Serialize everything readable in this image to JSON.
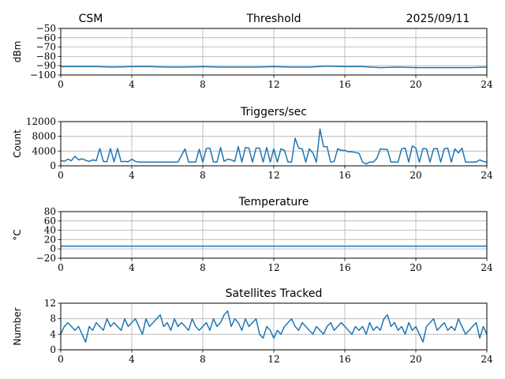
{
  "figure": {
    "left_title": "CSM",
    "right_title": "2025/09/11",
    "line_color": "#1f77b4",
    "grid_color": "#b0b0b0"
  },
  "chart_data": [
    {
      "type": "line",
      "title": "Threshold",
      "ylabel": "dBm",
      "xlim": [
        0,
        24
      ],
      "ylim": [
        -100,
        -50
      ],
      "xticks": [
        0,
        4,
        8,
        12,
        16,
        20,
        24
      ],
      "xticklabels": [
        "0",
        "4",
        "8",
        "12",
        "16",
        "20",
        "24"
      ],
      "yticks": [
        -50,
        -60,
        -70,
        -80,
        -90,
        -100
      ],
      "yticklabels": [
        "−50",
        "−60",
        "−70",
        "−80",
        "−90",
        "−100"
      ],
      "grid": true,
      "x_step": 1,
      "y": [
        -91,
        -91,
        -91,
        -91.5,
        -91,
        -91,
        -91.5,
        -91.5,
        -91,
        -91.5,
        -91.5,
        -91.5,
        -91,
        -91.5,
        -91.5,
        -90.5,
        -91,
        -91,
        -92,
        -91.5,
        -92,
        -92,
        -92,
        -92,
        -91.5
      ]
    },
    {
      "type": "line",
      "title": "Triggers/sec",
      "ylabel": "Count",
      "xlim": [
        0,
        24
      ],
      "ylim": [
        0,
        12000
      ],
      "xticks": [
        0,
        4,
        8,
        12,
        16,
        20,
        24
      ],
      "xticklabels": [
        "0",
        "4",
        "8",
        "12",
        "16",
        "20",
        "24"
      ],
      "yticks": [
        0,
        4000,
        8000,
        12000
      ],
      "yticklabels": [
        "0",
        "4000",
        "8000",
        "12000"
      ],
      "grid": true,
      "x_step": 0.2,
      "y": [
        1500,
        1200,
        1800,
        1400,
        2600,
        1600,
        1900,
        1500,
        1200,
        1600,
        1400,
        4700,
        1200,
        1100,
        4700,
        1100,
        4700,
        1100,
        1200,
        1100,
        1800,
        1200,
        1000,
        1000,
        1000,
        1000,
        1000,
        1000,
        1000,
        1000,
        1000,
        1000,
        1000,
        1000,
        2800,
        4600,
        1000,
        1000,
        1000,
        4500,
        1000,
        4700,
        4800,
        1000,
        1000,
        5000,
        1200,
        1800,
        1600,
        1200,
        5200,
        1000,
        5000,
        4800,
        1000,
        4800,
        4800,
        1000,
        5000,
        1000,
        4600,
        1000,
        4600,
        4200,
        1000,
        1000,
        7500,
        4800,
        4600,
        1000,
        4600,
        3500,
        1000,
        10000,
        5200,
        5200,
        1000,
        1200,
        4600,
        4200,
        4200,
        3800,
        3800,
        3600,
        3400,
        1000,
        500,
        1000,
        1000,
        2000,
        4600,
        4500,
        4400,
        1000,
        1000,
        1000,
        4600,
        4800,
        1000,
        5400,
        4800,
        1000,
        4700,
        4600,
        1000,
        4600,
        4700,
        1000,
        4600,
        4800,
        1000,
        4600,
        3500,
        4800,
        1000,
        1000,
        1000,
        1000,
        1600,
        1200,
        1000
      ]
    },
    {
      "type": "line",
      "title": "Temperature",
      "ylabel": "°C",
      "xlim": [
        0,
        24
      ],
      "ylim": [
        -20,
        80
      ],
      "xticks": [
        0,
        4,
        8,
        12,
        16,
        20,
        24
      ],
      "xticklabels": [
        "0",
        "4",
        "8",
        "12",
        "16",
        "20",
        "24"
      ],
      "yticks": [
        -20,
        0,
        20,
        40,
        60,
        80
      ],
      "yticklabels": [
        "−20",
        "0",
        "20",
        "40",
        "60",
        "80"
      ],
      "grid": true,
      "x_step": 24,
      "y": [
        6,
        6
      ]
    },
    {
      "type": "line",
      "title": "Satellites Tracked",
      "ylabel": "Number",
      "xlim": [
        0,
        24
      ],
      "ylim": [
        0,
        12
      ],
      "xticks": [
        0,
        4,
        8,
        12,
        16,
        20,
        24
      ],
      "xticklabels": [
        "0",
        "4",
        "8",
        "12",
        "16",
        "20",
        "24"
      ],
      "yticks": [
        0,
        4,
        8,
        12
      ],
      "yticklabels": [
        "0",
        "4",
        "8",
        "12"
      ],
      "grid": true,
      "x_step": 0.2,
      "y": [
        4,
        6,
        7,
        6,
        5,
        6,
        4,
        2,
        6,
        5,
        7,
        6,
        5,
        8,
        6,
        7,
        6,
        5,
        8,
        6,
        7,
        8,
        6,
        4,
        8,
        6,
        7,
        8,
        9,
        6,
        7,
        5,
        8,
        6,
        7,
        6,
        5,
        8,
        6,
        5,
        6,
        7,
        5,
        8,
        6,
        7,
        9,
        10,
        6,
        8,
        7,
        5,
        8,
        6,
        7,
        8,
        4,
        3,
        6,
        5,
        3,
        5,
        4,
        6,
        7,
        8,
        6,
        5,
        7,
        6,
        5,
        4,
        6,
        5,
        4,
        6,
        7,
        5,
        6,
        7,
        6,
        5,
        4,
        6,
        5,
        6,
        4,
        7,
        5,
        6,
        5,
        8,
        9,
        6,
        7,
        5,
        6,
        4,
        7,
        5,
        6,
        4,
        2,
        6,
        7,
        8,
        5,
        6,
        7,
        5,
        6,
        5,
        8,
        6,
        4,
        5,
        6,
        7,
        3,
        6,
        4
      ]
    }
  ]
}
